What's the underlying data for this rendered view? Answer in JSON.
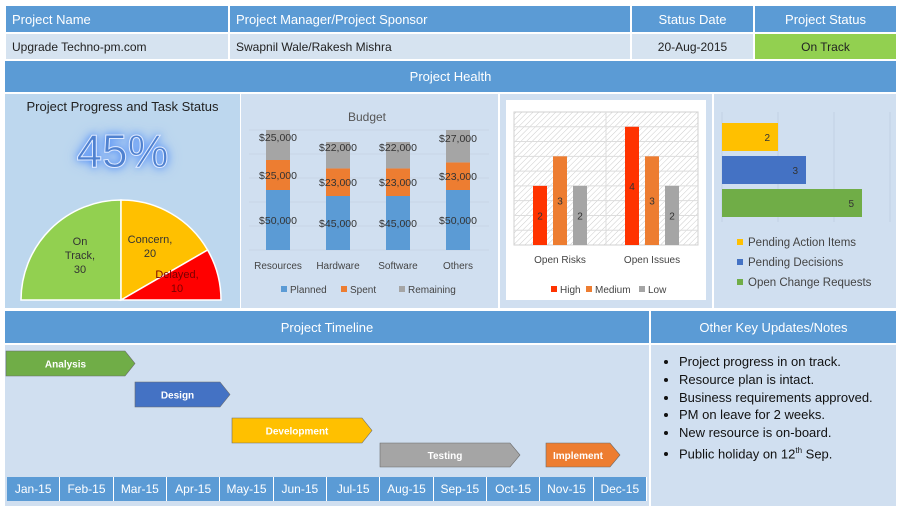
{
  "header": {
    "cols": [
      "Project Name",
      "Project Manager/Project Sponsor",
      "Status Date",
      "Project Status"
    ],
    "values": [
      "Upgrade Techno-pm.com",
      "Swapnil Wale/Rakesh Mishra",
      "20-Aug-2015",
      "On Track"
    ],
    "status_color": "#92d050"
  },
  "health": {
    "title": "Project Health"
  },
  "progress": {
    "title": "Project Progress and Task Status",
    "percent": "45%"
  },
  "chart_data": [
    {
      "type": "pie",
      "variant": "half-donut-semicircle",
      "slices": [
        {
          "label": "On Track",
          "value": 30,
          "color": "#92d050"
        },
        {
          "label": "Concern",
          "value": 20,
          "color": "#ffc000"
        },
        {
          "label": "Delayed",
          "value": 10,
          "color": "#ff0000"
        }
      ]
    },
    {
      "type": "bar",
      "stacked": true,
      "title": "Budget",
      "categories": [
        "Resources",
        "Hardware",
        "Software",
        "Others"
      ],
      "series": [
        {
          "name": "Planned",
          "values": [
            50000,
            45000,
            45000,
            50000
          ],
          "color": "#5b9bd5"
        },
        {
          "name": "Spent",
          "values": [
            25000,
            23000,
            23000,
            23000
          ],
          "color": "#ed7d31"
        },
        {
          "name": "Remaining",
          "values": [
            25000,
            22000,
            22000,
            27000
          ],
          "color": "#a5a5a5"
        }
      ],
      "ylim": [
        0,
        100000
      ],
      "labels": [
        [
          "$50,000",
          "$45,000",
          "$45,000",
          "$50,000"
        ],
        [
          "$25,000",
          "$23,000",
          "$23,000",
          "$23,000"
        ],
        [
          "$25,000",
          "$22,000",
          "$22,000",
          "$27,000"
        ]
      ],
      "legend": "bottom",
      "grid": true
    },
    {
      "type": "bar",
      "categories": [
        "Open Risks",
        "Open Issues"
      ],
      "series": [
        {
          "name": "High",
          "values": [
            2,
            4
          ],
          "color": "#ff3300"
        },
        {
          "name": "Medium",
          "values": [
            3,
            3
          ],
          "color": "#ed7d31"
        },
        {
          "name": "Low",
          "values": [
            2,
            2
          ],
          "color": "#a5a5a5"
        }
      ],
      "ylim": [
        0,
        4.5
      ],
      "legend": "bottom",
      "grid": true
    },
    {
      "type": "bar",
      "orientation": "horizontal",
      "series": [
        {
          "name": "Pending Action Items",
          "values": [
            2
          ],
          "color": "#ffc000"
        },
        {
          "name": "Pending Decisions",
          "values": [
            3
          ],
          "color": "#4472c4"
        },
        {
          "name": "Open Change Requests",
          "values": [
            5
          ],
          "color": "#70ad47"
        }
      ],
      "xlim": [
        0,
        6
      ],
      "legend": "bottom",
      "grid": true
    }
  ],
  "timeline": {
    "title": "Project Timeline",
    "phases": [
      {
        "label": "Analysis",
        "color": "#70ad47"
      },
      {
        "label": "Design",
        "color": "#4472c4"
      },
      {
        "label": "Development",
        "color": "#ffc000"
      },
      {
        "label": "Testing",
        "color": "#a5a5a5"
      },
      {
        "label": "Implement",
        "color": "#ed7d31"
      }
    ],
    "months": [
      "Jan-15",
      "Feb-15",
      "Mar-15",
      "Apr-15",
      "May-15",
      "Jun-15",
      "Jul-15",
      "Aug-15",
      "Sep-15",
      "Oct-15",
      "Nov-15",
      "Dec-15"
    ]
  },
  "notes": {
    "title": "Other Key Updates/Notes",
    "items": [
      "Project progress in on track.",
      "Resource plan is intact.",
      "Business requirements approved.",
      "PM on leave for 2 weeks.",
      "New resource is on-board."
    ],
    "last_item": {
      "prefix": "Public holiday on 12",
      "sup": "th",
      "suffix": " Sep."
    }
  }
}
